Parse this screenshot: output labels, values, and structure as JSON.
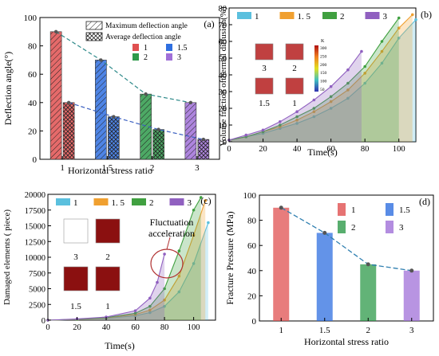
{
  "chart_data": [
    {
      "type": "bar",
      "panel_label": "(a)",
      "categories": [
        "1",
        "1.5",
        "2",
        "3"
      ],
      "xlabel": "Horizontal stress ratio",
      "ylabel": "Deflection angle(°)",
      "ylim": [
        0,
        100
      ],
      "yticks": [
        0,
        20,
        40,
        60,
        80,
        100
      ],
      "legend_patterns": [
        "Maximum deflection angle",
        "Average deflection angle"
      ],
      "legend_colors": [
        "1",
        "1.5",
        "2",
        "3"
      ],
      "colors": [
        "#e05050",
        "#2f6fe0",
        "#2e9a4a",
        "#a070d8"
      ],
      "series": [
        {
          "name": "Maximum deflection angle",
          "values": [
            90,
            70,
            46,
            40
          ]
        },
        {
          "name": "Average deflection angle",
          "values": [
            40,
            30,
            21,
            14
          ]
        }
      ]
    },
    {
      "type": "area",
      "panel_label": "(b)",
      "xlabel": "Time(s)",
      "ylabel": "Volume fraction ofthermal diffusion(%)",
      "xlim": [
        0,
        110
      ],
      "ylim": [
        0,
        80
      ],
      "xticks": [
        0,
        20,
        40,
        60,
        80,
        100
      ],
      "yticks": [
        0,
        10,
        20,
        30,
        40,
        50,
        60,
        70,
        80
      ],
      "colorbar_unit": "K",
      "colorbar_ticks": [
        "300",
        "250",
        "200",
        "150",
        "100",
        "50"
      ],
      "inset_labels": [
        "3",
        "2",
        "1.5",
        "1"
      ],
      "colors": [
        "#5bc0de",
        "#f0a030",
        "#40a040",
        "#9060c0"
      ],
      "series": [
        {
          "name": "1",
          "x": [
            0,
            10,
            20,
            30,
            40,
            50,
            60,
            70,
            80,
            90,
            100,
            110
          ],
          "values": [
            1,
            3,
            5,
            8,
            11,
            15,
            20,
            26,
            35,
            47,
            62,
            73
          ]
        },
        {
          "name": "1. 5",
          "x": [
            0,
            10,
            20,
            30,
            40,
            50,
            60,
            70,
            80,
            90,
            100,
            108
          ],
          "values": [
            1,
            3,
            6,
            9,
            13,
            18,
            24,
            31,
            41,
            54,
            68,
            76
          ]
        },
        {
          "name": "2",
          "x": [
            0,
            10,
            20,
            30,
            40,
            50,
            60,
            70,
            80,
            90,
            100
          ],
          "values": [
            1,
            3,
            6,
            10,
            15,
            20,
            27,
            35,
            45,
            60,
            74
          ]
        },
        {
          "name": "3",
          "x": [
            0,
            10,
            20,
            30,
            40,
            50,
            60,
            70,
            78
          ],
          "values": [
            1,
            4,
            7,
            12,
            18,
            25,
            33,
            43,
            54
          ]
        }
      ]
    },
    {
      "type": "area",
      "panel_label": "(c)",
      "xlabel": "Time(s)",
      "ylabel": "Damaged elements ( piece)",
      "xlim": [
        0,
        115
      ],
      "ylim": [
        0,
        20000
      ],
      "xticks": [
        0,
        20,
        40,
        60,
        80,
        100
      ],
      "yticks": [
        0,
        2500,
        5000,
        7500,
        10000,
        12500,
        15000,
        17500,
        20000
      ],
      "annotation": "Fluctuation acceleration",
      "inset_labels": [
        "3",
        "2",
        "1.5",
        "1"
      ],
      "colors": [
        "#5bc0de",
        "#f0a030",
        "#40a040",
        "#9060c0"
      ],
      "series": [
        {
          "name": "1",
          "x": [
            0,
            20,
            40,
            60,
            70,
            80,
            90,
            100,
            110
          ],
          "values": [
            0,
            100,
            300,
            700,
            1200,
            2200,
            4500,
            9000,
            15500
          ]
        },
        {
          "name": "1. 5",
          "x": [
            0,
            20,
            40,
            60,
            70,
            80,
            90,
            100,
            108
          ],
          "values": [
            0,
            120,
            350,
            900,
            1600,
            3200,
            7000,
            13500,
            19000
          ]
        },
        {
          "name": "2",
          "x": [
            0,
            20,
            40,
            60,
            70,
            80,
            90,
            100,
            105
          ],
          "values": [
            0,
            150,
            400,
            1100,
            2200,
            5000,
            11000,
            17500,
            19500
          ]
        },
        {
          "name": "3",
          "x": [
            0,
            20,
            40,
            60,
            70,
            75,
            80
          ],
          "values": [
            0,
            200,
            500,
            1500,
            3500,
            6000,
            10500
          ]
        }
      ]
    },
    {
      "type": "bar",
      "panel_label": "(d)",
      "categories": [
        "1",
        "1.5",
        "2",
        "3"
      ],
      "values": [
        90,
        70,
        45,
        40
      ],
      "xlabel": "Horizontal stress ratio",
      "ylabel": "Fracture Pressure (MPa)",
      "ylim": [
        0,
        100
      ],
      "yticks": [
        0,
        20,
        40,
        60,
        80,
        100
      ],
      "legend": [
        "1",
        "1.5",
        "2",
        "3"
      ],
      "colors": [
        "#e05050",
        "#2f6fe0",
        "#2e9a4a",
        "#a070d8"
      ]
    }
  ]
}
